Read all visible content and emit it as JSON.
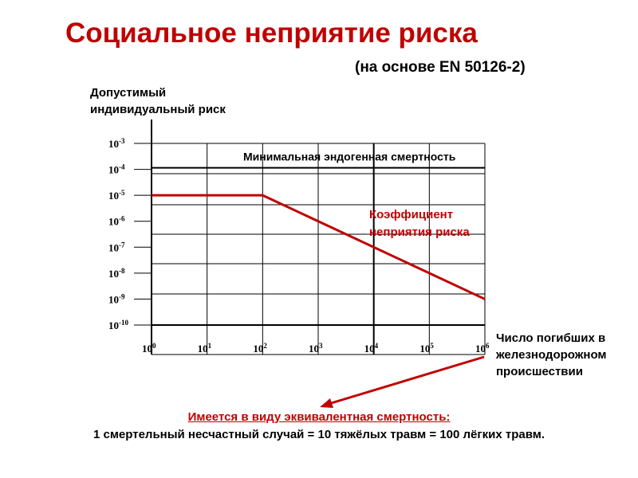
{
  "title": "Социальное неприятие риска",
  "subtitle": "(на основе EN 50126-2)",
  "note": {
    "heading": "Имеется в виду эквивалентная смертность:",
    "text": "1 смертельный несчастный случай = 10 тяжёлых травм = 100 лёгких травм."
  },
  "colors": {
    "accent": "#c00000",
    "axis": "#000000"
  },
  "chart_data": {
    "type": "line",
    "ylabel": "Допустимый индивидуальный риск",
    "xlabel": "Число погибших в железнодорожном происшествии",
    "xscale": "log",
    "yscale": "log",
    "xlim": [
      1,
      1000000
    ],
    "ylim": [
      1e-10,
      0.001
    ],
    "x_ticks": [
      "10^0",
      "10^1",
      "10^2",
      "10^3",
      "10^4",
      "10^5",
      "10^6"
    ],
    "y_ticks": [
      "10^-3",
      "10^-4",
      "10^-5",
      "10^-6",
      "10^-7",
      "10^-8",
      "10^-9",
      "10^-10"
    ],
    "grid": true,
    "series": [
      {
        "name": "Коэффициент неприятия риска",
        "color": "#c00000",
        "x": [
          1,
          100,
          1000000
        ],
        "y": [
          1e-05,
          1e-05,
          1e-09
        ]
      }
    ],
    "reference_lines": [
      {
        "label": "Минимальная эндогенная смертность",
        "y": 0.0001
      }
    ]
  }
}
